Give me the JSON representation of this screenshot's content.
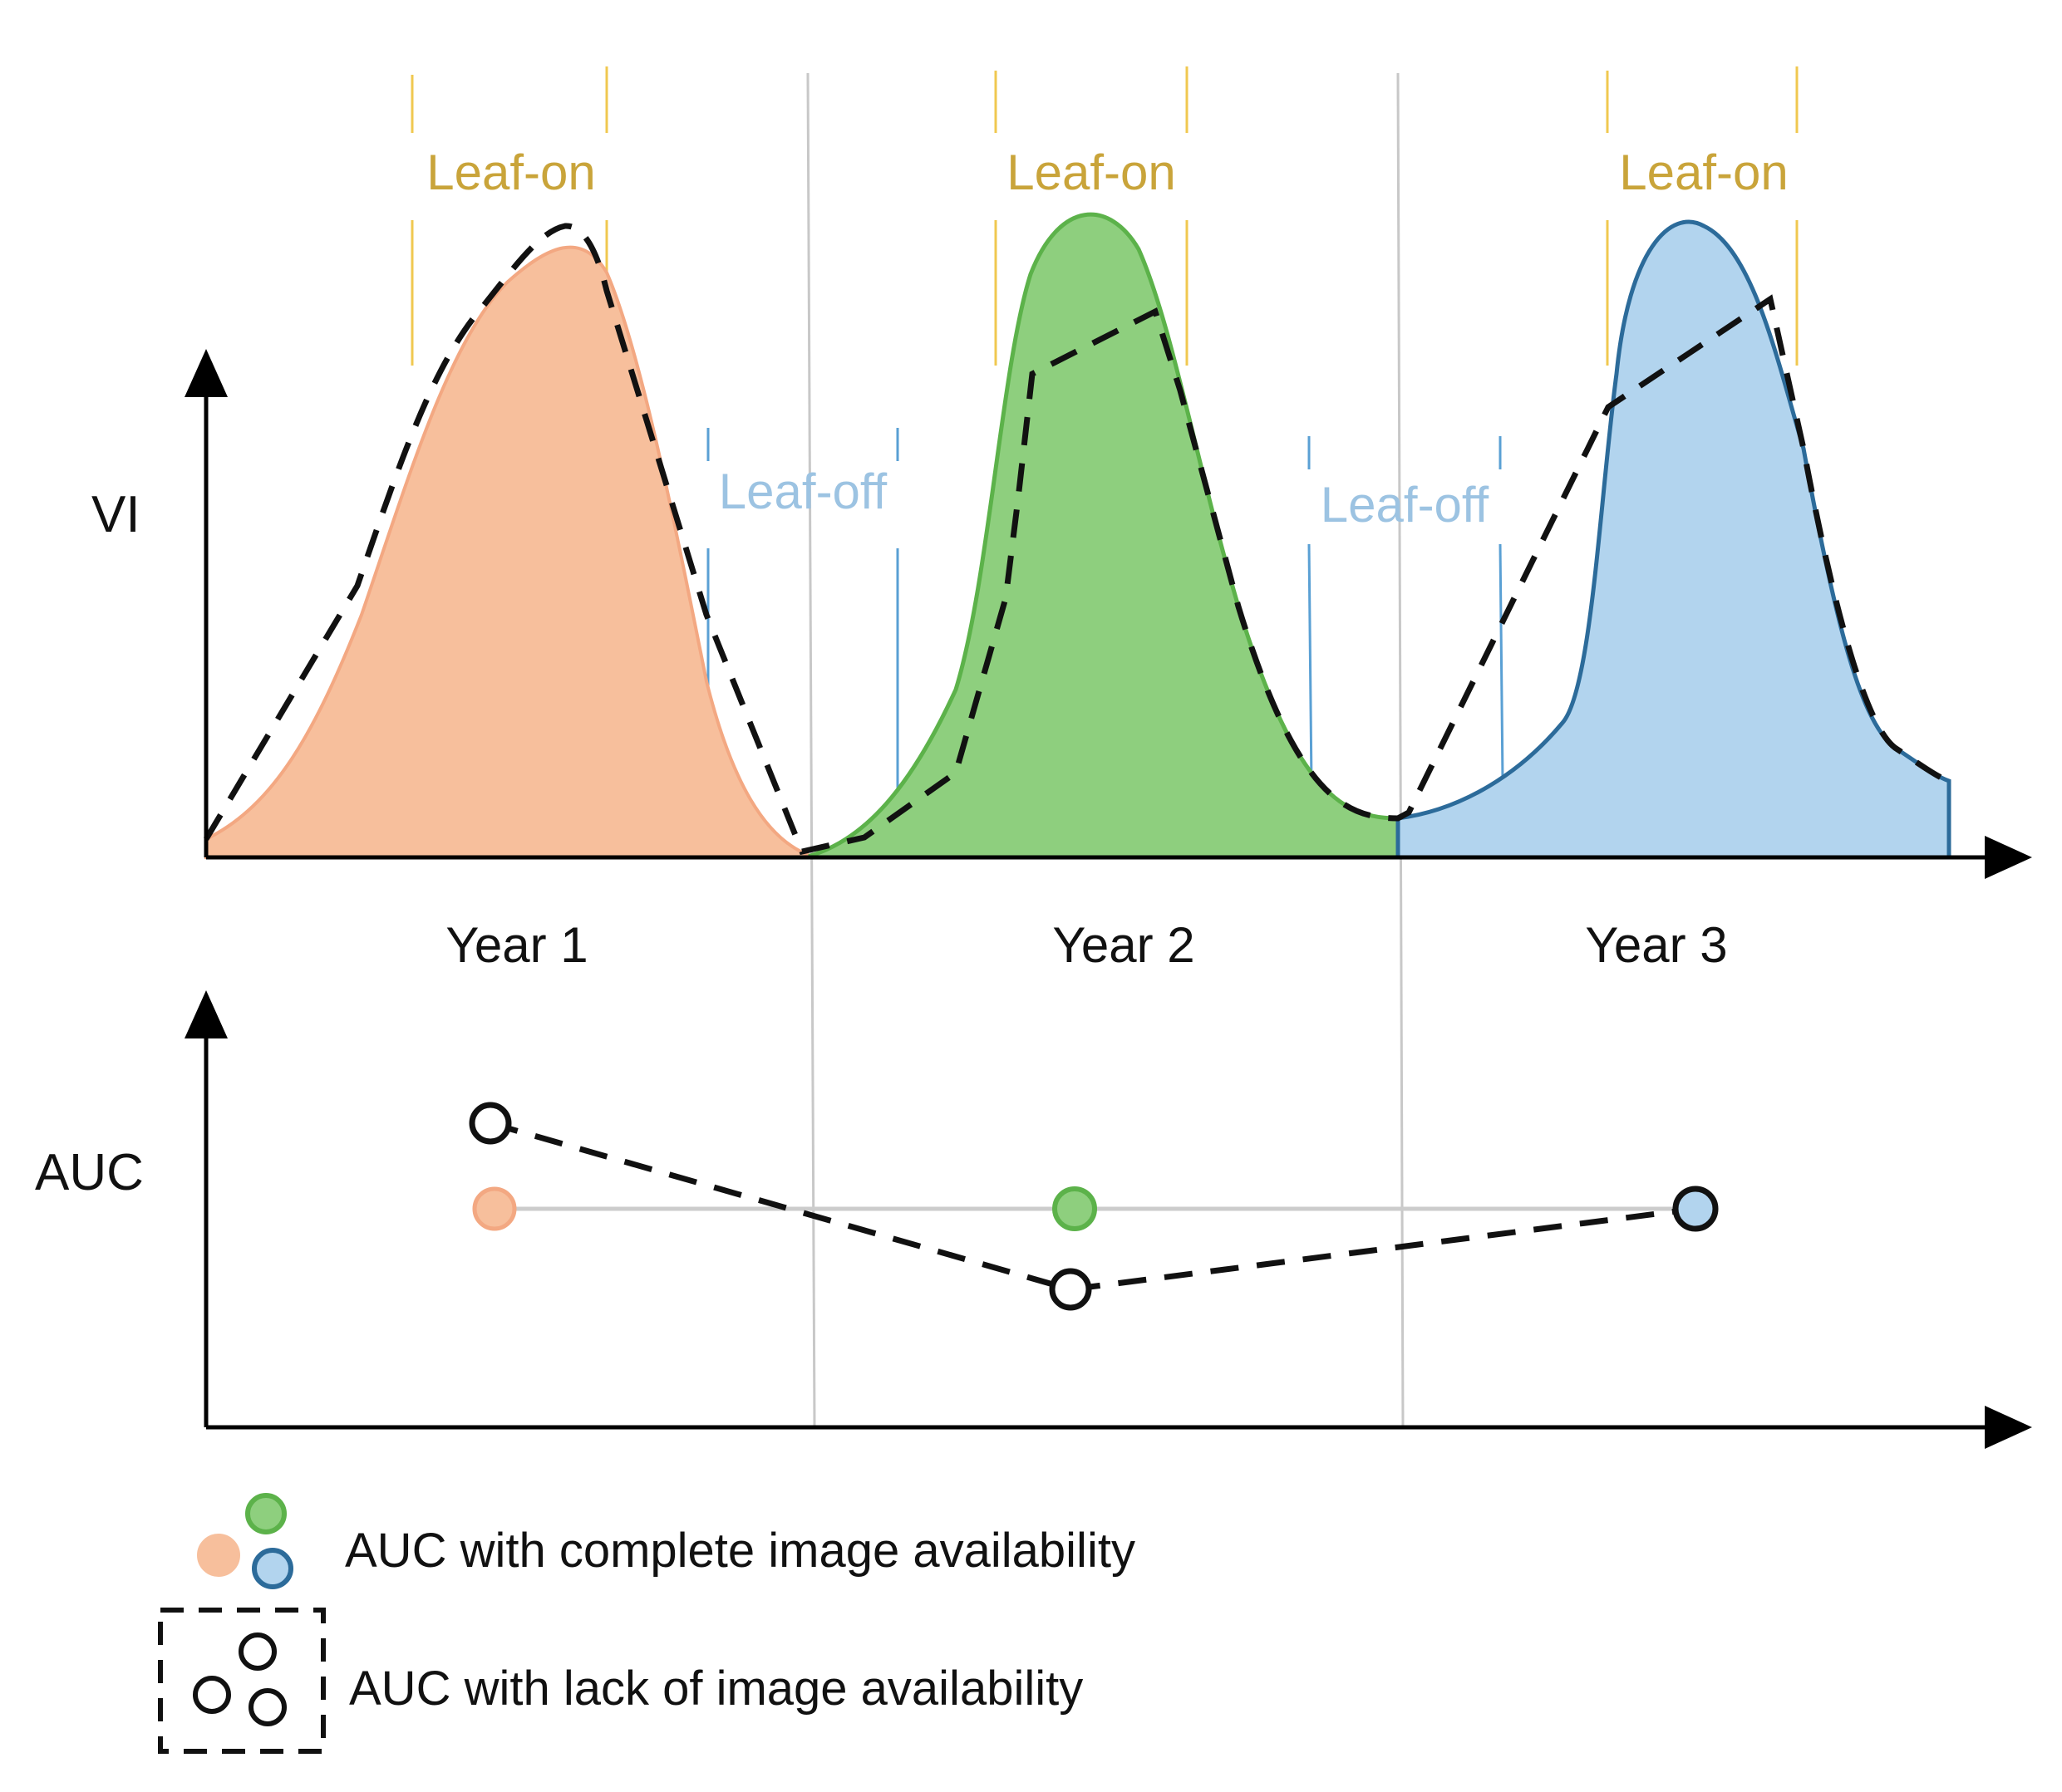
{
  "colors": {
    "year1": "#f7bf9c",
    "year1_stroke": "#f3a882",
    "year2": "#8ecf7e",
    "year2_stroke": "#5cb24a",
    "year3": "#b2d4ee",
    "year3_stroke": "#2c6b9a",
    "leaf_on": "#f0c850",
    "leaf_off": "#5aa0d4",
    "grey_line": "#cccccc",
    "axis": "#000000"
  },
  "top_chart": {
    "y_axis_label": "VI",
    "leaf_on_label": "Leaf-on",
    "leaf_off_label": "Leaf-off",
    "years": [
      "Year 1",
      "Year 2",
      "Year 3"
    ]
  },
  "bottom_chart": {
    "y_axis_label": "AUC",
    "complete_points": [
      {
        "year": "Year 1",
        "color": "#f7bf9c"
      },
      {
        "year": "Year 2",
        "color": "#8ecf7e"
      },
      {
        "year": "Year 3",
        "color": "#b2d4ee"
      }
    ],
    "lacking_points": [
      "Year 1",
      "Year 2",
      "Year 3"
    ]
  },
  "legend": {
    "complete_label": "AUC with complete image availability",
    "lack_label": "AUC with lack of image availability"
  }
}
